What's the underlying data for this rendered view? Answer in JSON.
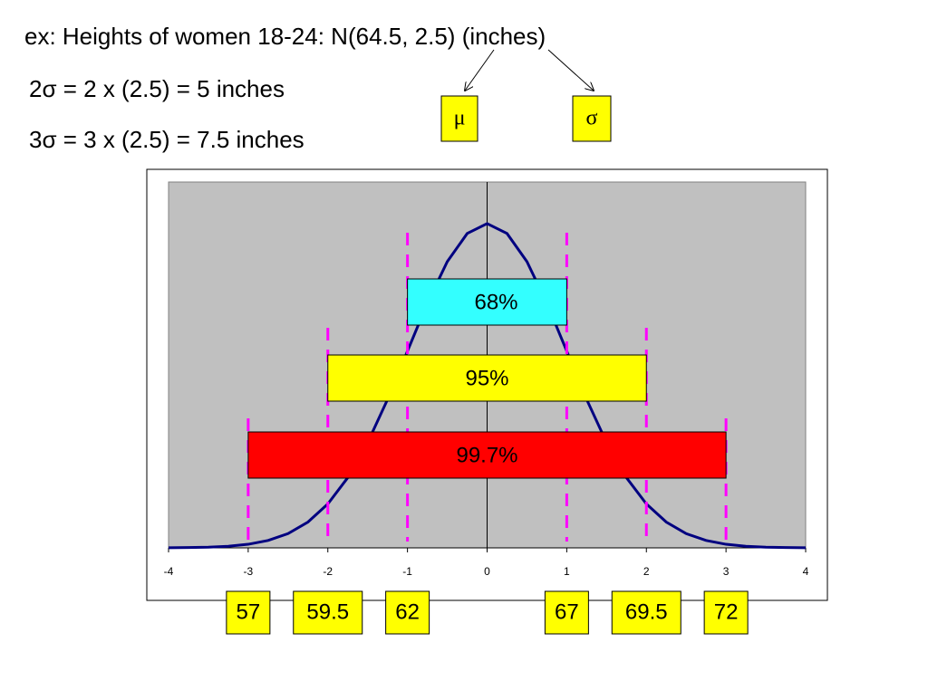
{
  "heading": "ex: Heights of women 18-24: N(64.5, 2.5) (inches)",
  "lines": [
    "2σ = 2 x (2.5) = 5 inches",
    "3σ = 3 x (2.5) = 7.5 inches"
  ],
  "symbols": {
    "mean": "μ",
    "sd": "σ"
  },
  "chart_data": {
    "type": "line",
    "x": [
      -4,
      -3.75,
      -3.5,
      -3.25,
      -3,
      -2.75,
      -2.5,
      -2.25,
      -2,
      -1.75,
      -1.5,
      -1.25,
      -1,
      -0.75,
      -0.5,
      -0.25,
      0,
      0.25,
      0.5,
      0.75,
      1,
      1.25,
      1.5,
      1.75,
      2,
      2.25,
      2.5,
      2.75,
      3,
      3.25,
      3.5,
      3.75,
      4
    ],
    "values": [
      0.0001,
      0.0004,
      0.0009,
      0.002,
      0.0044,
      0.0091,
      0.0175,
      0.0317,
      0.054,
      0.0863,
      0.1295,
      0.1826,
      0.242,
      0.3011,
      0.3521,
      0.3867,
      0.3989,
      0.3867,
      0.3521,
      0.3011,
      0.242,
      0.1826,
      0.1295,
      0.0863,
      0.054,
      0.0317,
      0.0175,
      0.0091,
      0.0044,
      0.002,
      0.0009,
      0.0004,
      0.0001
    ],
    "color": "#000080",
    "xlim": [
      -4,
      4
    ],
    "xticks": [
      -4,
      -3,
      -2,
      -1,
      0,
      1,
      2,
      3,
      4
    ],
    "ylim": [
      0,
      0.45
    ],
    "intervals": [
      {
        "label": "68%",
        "from": -1,
        "to": 1,
        "color": "#33ffff"
      },
      {
        "label": "95%",
        "from": -2,
        "to": 2,
        "color": "#ffff00"
      },
      {
        "label": "99.7%",
        "from": -3,
        "to": 3,
        "color": "#ff0000"
      }
    ],
    "annotations": [
      {
        "x": -3,
        "text": "57"
      },
      {
        "x": -2,
        "text": "59.5"
      },
      {
        "x": -1,
        "text": "62"
      },
      {
        "x": 1,
        "text": "67"
      },
      {
        "x": 2,
        "text": "69.5"
      },
      {
        "x": 3,
        "text": "72"
      }
    ]
  }
}
